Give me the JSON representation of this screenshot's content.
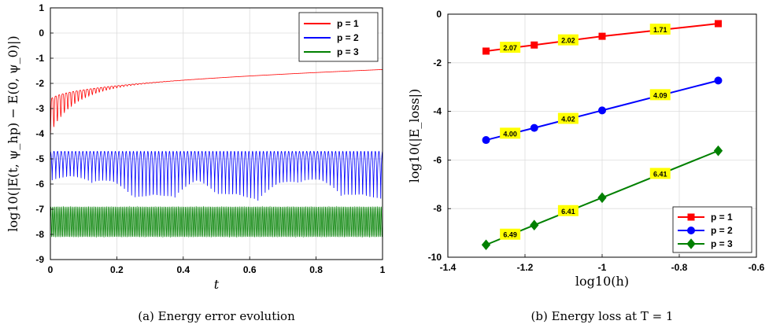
{
  "chart_data": [
    {
      "type": "line",
      "title": "",
      "caption": "(a) Energy error evolution",
      "xlabel": "t",
      "ylabel": "log10(|E(t, ψ_hp) − E(0, ψ_0)|)",
      "xlim": [
        0,
        1
      ],
      "ylim": [
        -9,
        1
      ],
      "xticks": [
        "0",
        "0.2",
        "0.4",
        "0.6",
        "0.8",
        "1"
      ],
      "yticks": [
        "1",
        "0",
        "-1",
        "-2",
        "-3",
        "-4",
        "-5",
        "-6",
        "-7",
        "-8",
        "-9"
      ],
      "grid": true,
      "legend_position": "top-right",
      "series": [
        {
          "name": "p = 1",
          "color": "#ff0000",
          "baseline_start": -2.7,
          "baseline_end": -1.45,
          "oscillation_min": -4.1
        },
        {
          "name": "p = 2",
          "color": "#0000ff",
          "upper": -4.7,
          "lower_typical": -5.9,
          "lower_dip": -6.8
        },
        {
          "name": "p = 3",
          "color": "#008000",
          "upper": -6.9,
          "lower": -8.1
        }
      ]
    },
    {
      "type": "line",
      "title": "",
      "caption": "(b) Energy loss at T = 1",
      "xlabel": "log10(h)",
      "ylabel": "log10(|E_loss|)",
      "xlim": [
        -1.4,
        -0.6
      ],
      "ylim": [
        -10,
        0
      ],
      "xticks": [
        "-1.4",
        "-1.2",
        "-1",
        "-0.8",
        "-0.6"
      ],
      "yticks": [
        "0",
        "-2",
        "-4",
        "-6",
        "-8",
        "-10"
      ],
      "grid": true,
      "legend_position": "bottom-right",
      "x": [
        -1.301,
        -1.176,
        -1.0,
        -0.699
      ],
      "series": [
        {
          "name": "p = 1",
          "color": "#ff0000",
          "marker": "square",
          "values": [
            -1.52,
            -1.27,
            -0.91,
            -0.39
          ],
          "rates": [
            "2.07",
            "2.02",
            "1.71"
          ]
        },
        {
          "name": "p = 2",
          "color": "#0000ff",
          "marker": "circle",
          "values": [
            -5.18,
            -4.68,
            -3.96,
            -2.73
          ],
          "rates": [
            "4.00",
            "4.02",
            "4.09"
          ]
        },
        {
          "name": "p = 3",
          "color": "#008000",
          "marker": "diamond",
          "values": [
            -9.49,
            -8.68,
            -7.55,
            -5.62
          ],
          "rates": [
            "6.49",
            "6.41",
            "6.41"
          ]
        }
      ]
    }
  ]
}
